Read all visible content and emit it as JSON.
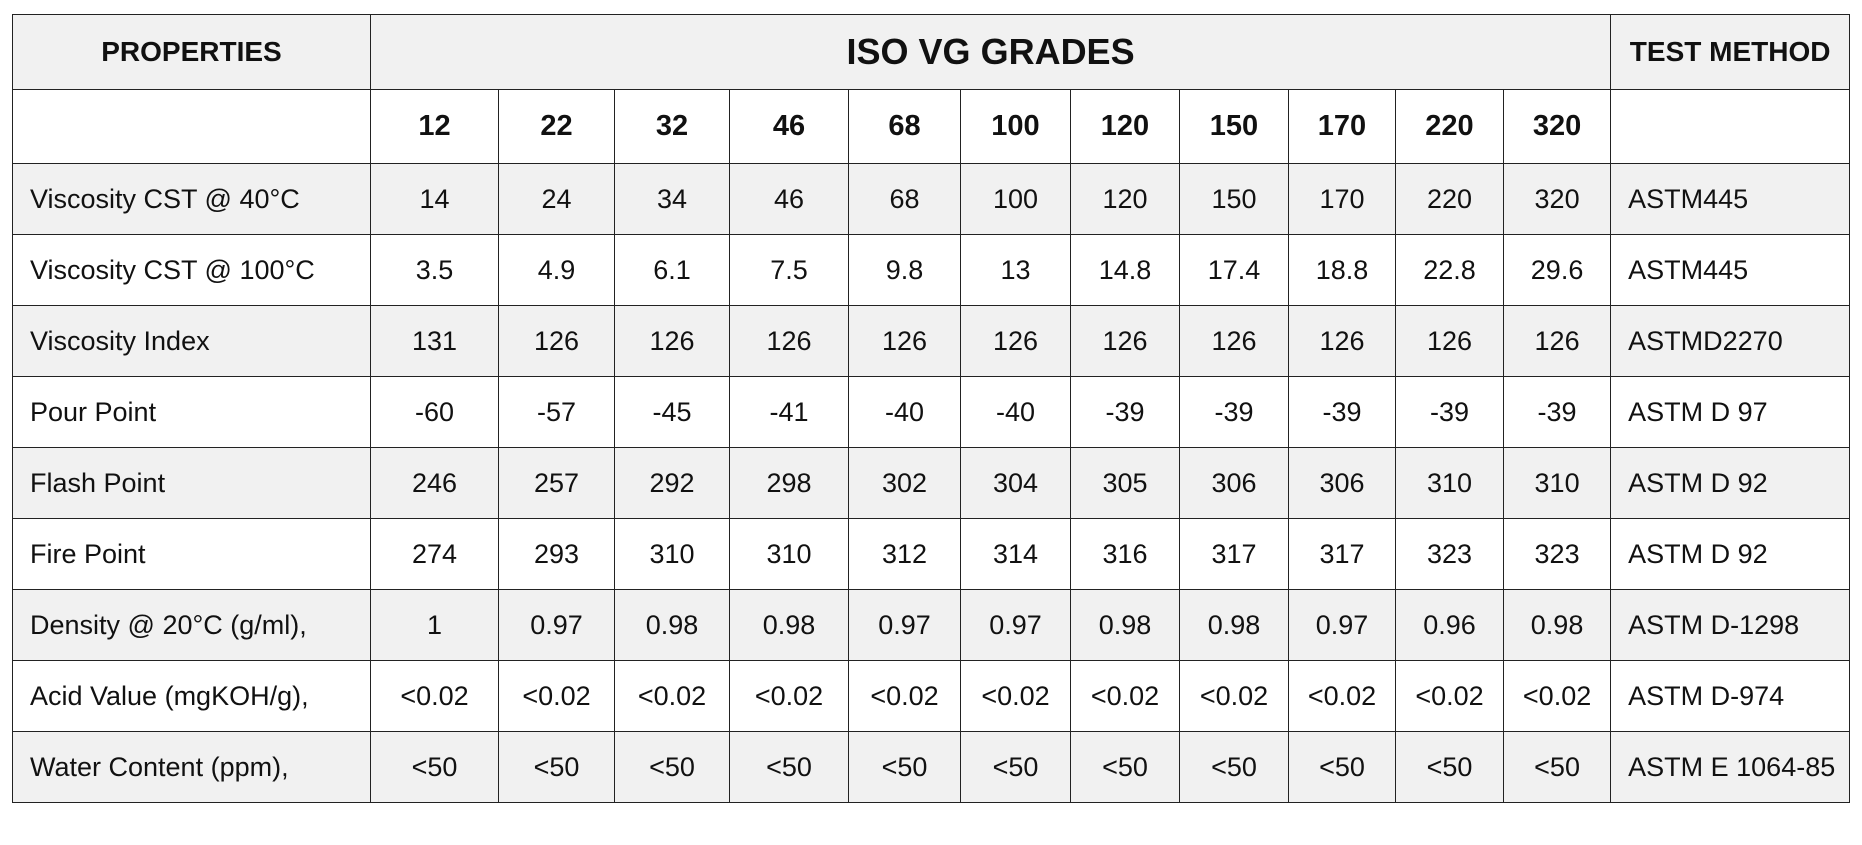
{
  "header": {
    "properties": "PROPERTIES",
    "grades_title": "ISO VG GRADES",
    "test_method": "TEST METHOD"
  },
  "grades": [
    12,
    22,
    32,
    46,
    68,
    100,
    120,
    150,
    170,
    220,
    320
  ],
  "rows": [
    {
      "property": "Viscosity CST @ 40°C",
      "values": [
        14,
        24,
        34,
        46,
        68,
        100,
        120,
        150,
        170,
        220,
        320
      ],
      "method": "ASTM445"
    },
    {
      "property": "Viscosity CST @ 100°C",
      "values": [
        3.5,
        4.9,
        6.1,
        7.5,
        9.8,
        13,
        14.8,
        17.4,
        18.8,
        22.8,
        29.6
      ],
      "method": "ASTM445"
    },
    {
      "property": "Viscosity Index",
      "values": [
        131,
        126,
        126,
        126,
        126,
        126,
        126,
        126,
        126,
        126,
        126
      ],
      "method": "ASTMD2270"
    },
    {
      "property": "Pour Point",
      "values": [
        -60,
        -57,
        -45,
        -41,
        -40,
        -40,
        -39,
        -39,
        -39,
        -39,
        -39
      ],
      "method": "ASTM D 97"
    },
    {
      "property": "Flash Point",
      "values": [
        246,
        257,
        292,
        298,
        302,
        304,
        305,
        306,
        306,
        310,
        310
      ],
      "method": "ASTM D 92"
    },
    {
      "property": "Fire Point",
      "values": [
        274,
        293,
        310,
        310,
        312,
        314,
        316,
        317,
        317,
        323,
        323
      ],
      "method": "ASTM D 92"
    },
    {
      "property": "Density @ 20°C (g/ml),",
      "values": [
        1,
        0.97,
        0.98,
        0.98,
        0.97,
        0.97,
        0.98,
        0.98,
        0.97,
        0.96,
        0.98
      ],
      "method": "ASTM D-1298"
    },
    {
      "property": "Acid Value (mgKOH/g),",
      "values": [
        "<0.02",
        "<0.02",
        "<0.02",
        "<0.02",
        "<0.02",
        "<0.02",
        "<0.02",
        "<0.02",
        "<0.02",
        "<0.02",
        "<0.02"
      ],
      "method": "ASTM D-974"
    },
    {
      "property": "Water Content (ppm),",
      "values": [
        "<50",
        "<50",
        "<50",
        "<50",
        "<50",
        "<50",
        "<50",
        "<50",
        "<50",
        "<50",
        "<50"
      ],
      "method": "ASTM E 1064-85"
    }
  ]
}
